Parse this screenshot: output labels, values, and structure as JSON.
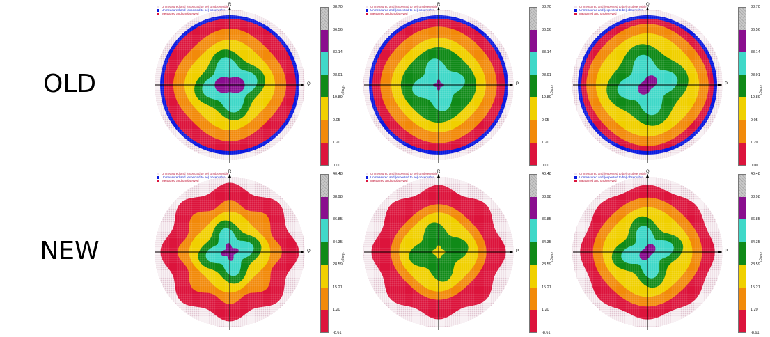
{
  "row_labels": [
    "OLD",
    "NEW"
  ],
  "colors": {
    "red": "#dc143c",
    "orange": "#f28a0a",
    "yellow": "#f0d000",
    "green": "#108a18",
    "cyan": "#40d8c8",
    "purple": "#8a0e8e",
    "gray": "#bdbdbd",
    "blue": "#0a1ae0",
    "halo": "#e8d4dc"
  },
  "legend_entries": [
    {
      "label": "Unmeasured and (expected to be) unobservable",
      "color": "#f3e4ea"
    },
    {
      "label": "Unmeasured and (expected to be) observable",
      "color": "#0a1ae0"
    },
    {
      "label": "Measured and unobserved",
      "color": "#dc143c"
    }
  ],
  "colorbar_title": "<I/sig>",
  "chart_data": [
    {
      "type": "heatmap",
      "row": "OLD",
      "panel": 1,
      "axis_top": "R",
      "axis_right": "Q",
      "colorbar_ticks": [
        "38.70",
        "36.56",
        "33.14",
        "28.91",
        "19.89",
        "9.05",
        "1.20",
        "0.00"
      ],
      "blue_edge": true,
      "pattern": "a"
    },
    {
      "type": "heatmap",
      "row": "OLD",
      "panel": 2,
      "axis_top": "R",
      "axis_right": "P",
      "colorbar_ticks": [
        "38.70",
        "36.56",
        "33.14",
        "28.91",
        "19.89",
        "9.05",
        "1.20",
        "0.00"
      ],
      "blue_edge": true,
      "pattern": "b"
    },
    {
      "type": "heatmap",
      "row": "OLD",
      "panel": 3,
      "axis_top": "Q",
      "axis_right": "P",
      "colorbar_ticks": [
        "38.70",
        "36.56",
        "33.14",
        "28.91",
        "19.89",
        "9.05",
        "1.20",
        "0.00"
      ],
      "blue_edge": true,
      "pattern": "c"
    },
    {
      "type": "heatmap",
      "row": "NEW",
      "panel": 1,
      "axis_top": "R",
      "axis_right": "Q",
      "colorbar_ticks": [
        "40.48",
        "38.98",
        "36.85",
        "34.35",
        "28.59",
        "15.21",
        "1.20",
        "-8.61"
      ],
      "blue_edge": false,
      "pattern": "d"
    },
    {
      "type": "heatmap",
      "row": "NEW",
      "panel": 2,
      "axis_top": "R",
      "axis_right": "P",
      "colorbar_ticks": [
        "40.48",
        "38.98",
        "36.85",
        "34.35",
        "28.59",
        "15.21",
        "1.20",
        "-8.61"
      ],
      "blue_edge": false,
      "pattern": "e"
    },
    {
      "type": "heatmap",
      "row": "NEW",
      "panel": 3,
      "axis_top": "Q",
      "axis_right": "P",
      "colorbar_ticks": [
        "40.48",
        "38.98",
        "36.85",
        "34.35",
        "28.59",
        "15.21",
        "1.20",
        "-8.61"
      ],
      "blue_edge": false,
      "pattern": "f"
    }
  ]
}
